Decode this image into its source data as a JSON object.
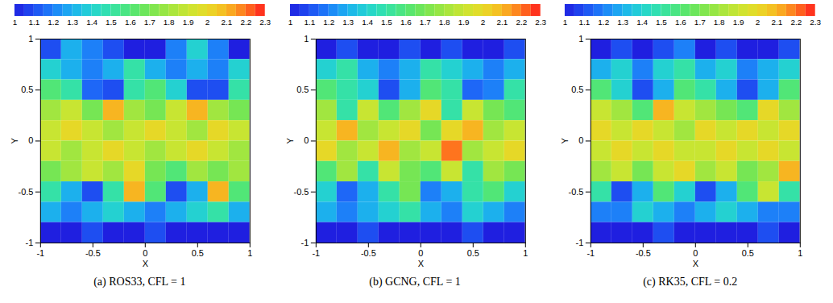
{
  "chart_data": [
    {
      "type": "heatmap",
      "title": "(a) ROS33, CFL = 1",
      "xlabel": "X",
      "ylabel": "Y",
      "xlim": [
        -1,
        1
      ],
      "ylim": [
        -1,
        1
      ],
      "xticks": [
        -1,
        -0.5,
        0,
        0.5,
        1
      ],
      "yticks": [
        -1,
        -0.5,
        0,
        0.5,
        1
      ],
      "x_edges": [
        -1,
        -0.8,
        -0.6,
        -0.4,
        -0.2,
        0,
        0.2,
        0.4,
        0.6,
        0.8,
        1
      ],
      "y_edges": [
        1,
        0.8,
        0.6,
        0.4,
        0.2,
        0,
        -0.2,
        -0.4,
        -0.6,
        -0.8,
        -1
      ],
      "cells": [
        [
          1.1,
          1.3,
          1.2,
          1.1,
          1.0,
          1.0,
          1.2,
          1.4,
          1.2,
          1.0
        ],
        [
          1.4,
          1.3,
          1.2,
          1.3,
          1.5,
          1.3,
          1.2,
          1.3,
          1.2,
          1.4
        ],
        [
          1.6,
          1.5,
          1.15,
          1.1,
          1.5,
          1.6,
          1.4,
          1.1,
          1.1,
          1.5
        ],
        [
          1.8,
          1.9,
          1.7,
          2.1,
          1.8,
          1.7,
          1.9,
          2.1,
          1.8,
          1.7
        ],
        [
          1.9,
          2.0,
          1.9,
          1.8,
          1.9,
          2.0,
          1.9,
          1.8,
          2.0,
          1.9
        ],
        [
          1.9,
          1.8,
          1.9,
          2.0,
          1.9,
          1.8,
          1.9,
          2.0,
          1.9,
          1.8
        ],
        [
          1.7,
          1.8,
          1.9,
          1.8,
          2.0,
          1.7,
          1.6,
          1.8,
          1.7,
          1.8
        ],
        [
          1.5,
          1.3,
          1.1,
          1.5,
          2.1,
          1.6,
          1.1,
          1.3,
          2.1,
          1.6
        ],
        [
          1.3,
          1.2,
          1.3,
          1.4,
          1.3,
          1.2,
          1.3,
          1.4,
          1.5,
          1.3
        ],
        [
          1.0,
          1.0,
          1.1,
          1.0,
          1.0,
          1.1,
          1.0,
          1.0,
          1.0,
          1.0
        ]
      ],
      "colorbar_range": [
        1,
        2.3
      ],
      "colorbar_ticks": [
        1,
        1.1,
        1.2,
        1.3,
        1.4,
        1.5,
        1.6,
        1.7,
        1.8,
        1.9,
        2,
        2.1,
        2.2,
        2.3
      ]
    },
    {
      "type": "heatmap",
      "title": "(b) GCNG, CFL = 1",
      "xlabel": "X",
      "ylabel": "Y",
      "xlim": [
        -1,
        1
      ],
      "ylim": [
        -1,
        1
      ],
      "xticks": [
        -1,
        -0.5,
        0,
        0.5,
        1
      ],
      "yticks": [
        -1,
        -0.5,
        0,
        0.5,
        1
      ],
      "x_edges": [
        -1,
        -0.8,
        -0.6,
        -0.4,
        -0.2,
        0,
        0.2,
        0.4,
        0.6,
        0.8,
        1
      ],
      "y_edges": [
        1,
        0.8,
        0.6,
        0.4,
        0.2,
        0,
        -0.2,
        -0.4,
        -0.6,
        -0.8,
        -1
      ],
      "cells": [
        [
          1.0,
          1.1,
          1.0,
          1.0,
          1.1,
          1.0,
          1.1,
          1.0,
          1.0,
          1.1
        ],
        [
          1.4,
          1.5,
          1.3,
          1.2,
          1.3,
          1.5,
          1.4,
          1.3,
          1.2,
          1.3
        ],
        [
          1.6,
          1.5,
          1.4,
          1.1,
          1.3,
          1.6,
          1.5,
          1.15,
          1.2,
          1.5
        ],
        [
          1.8,
          1.5,
          1.9,
          1.6,
          1.8,
          2.0,
          1.5,
          1.9,
          1.7,
          1.6
        ],
        [
          1.9,
          2.1,
          1.8,
          1.9,
          2.0,
          1.7,
          2.0,
          2.1,
          1.8,
          1.9
        ],
        [
          2.0,
          1.8,
          1.9,
          2.1,
          1.8,
          1.9,
          2.2,
          1.8,
          1.9,
          2.0
        ],
        [
          1.6,
          1.8,
          1.5,
          1.9,
          1.7,
          1.6,
          1.9,
          1.5,
          1.8,
          1.7
        ],
        [
          1.4,
          1.15,
          1.3,
          1.5,
          1.7,
          1.2,
          1.3,
          1.5,
          1.6,
          1.4
        ],
        [
          1.3,
          1.2,
          1.3,
          1.4,
          1.5,
          1.3,
          1.2,
          1.4,
          1.3,
          1.2
        ],
        [
          1.0,
          1.0,
          1.1,
          1.0,
          1.0,
          1.0,
          1.0,
          1.1,
          1.0,
          1.0
        ]
      ],
      "colorbar_range": [
        1,
        2.3
      ],
      "colorbar_ticks": [
        1,
        1.1,
        1.2,
        1.3,
        1.4,
        1.5,
        1.6,
        1.7,
        1.8,
        1.9,
        2,
        2.1,
        2.2,
        2.3
      ]
    },
    {
      "type": "heatmap",
      "title": "(c) RK35, CFL = 0.2",
      "xlabel": "X",
      "ylabel": "Y",
      "xlim": [
        -1,
        1
      ],
      "ylim": [
        -1,
        1
      ],
      "xticks": [
        -1,
        -0.5,
        0,
        0.5,
        1
      ],
      "yticks": [
        -1,
        -0.5,
        0,
        0.5,
        1
      ],
      "x_edges": [
        -1,
        -0.8,
        -0.6,
        -0.4,
        -0.2,
        0,
        0.2,
        0.4,
        0.6,
        0.8,
        1
      ],
      "y_edges": [
        1,
        0.8,
        0.6,
        0.4,
        0.2,
        0,
        -0.2,
        -0.4,
        -0.6,
        -0.8,
        -1
      ],
      "cells": [
        [
          1.0,
          1.1,
          1.0,
          1.1,
          1.2,
          1.0,
          1.1,
          1.0,
          1.0,
          1.1
        ],
        [
          1.3,
          1.4,
          1.2,
          1.4,
          1.5,
          1.3,
          1.4,
          1.2,
          1.3,
          1.4
        ],
        [
          1.6,
          1.4,
          1.1,
          1.3,
          1.6,
          1.5,
          1.3,
          1.1,
          1.3,
          1.6
        ],
        [
          1.9,
          1.8,
          1.6,
          2.1,
          1.9,
          1.8,
          1.7,
          1.6,
          2.0,
          1.8
        ],
        [
          2.0,
          1.9,
          2.0,
          1.9,
          1.8,
          2.0,
          1.9,
          2.0,
          1.9,
          2.0
        ],
        [
          1.9,
          2.0,
          1.9,
          2.0,
          1.9,
          1.9,
          2.0,
          1.9,
          2.0,
          1.9
        ],
        [
          1.8,
          1.9,
          1.7,
          1.9,
          2.0,
          1.8,
          1.9,
          1.7,
          1.8,
          2.1
        ],
        [
          1.5,
          1.1,
          1.3,
          1.6,
          1.4,
          1.1,
          1.3,
          1.6,
          1.9,
          1.5
        ],
        [
          1.2,
          1.2,
          1.4,
          1.3,
          1.2,
          1.3,
          1.4,
          1.3,
          1.2,
          1.2
        ],
        [
          1.0,
          1.0,
          1.0,
          1.1,
          1.0,
          1.0,
          1.0,
          1.0,
          1.1,
          1.0
        ]
      ],
      "colorbar_range": [
        1,
        2.3
      ],
      "colorbar_ticks": [
        1,
        1.1,
        1.2,
        1.3,
        1.4,
        1.5,
        1.6,
        1.7,
        1.8,
        1.9,
        2,
        2.1,
        2.2,
        2.3
      ]
    }
  ]
}
